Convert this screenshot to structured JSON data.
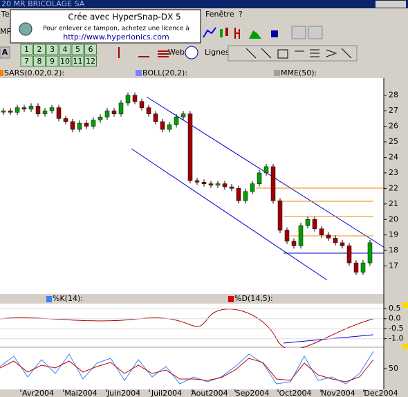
{
  "window": {
    "title": "20  MR BRICOLAGE SA"
  },
  "menu": [
    "Te",
    "Fenêtre",
    "?"
  ],
  "watermark": {
    "line1": "Crée avec HyperSnap-DX 5",
    "line2": "Pour enlever ce tampon, achetez une licence à",
    "url": "http://www.hyperionics.com"
  },
  "toolbar": {
    "font": "A",
    "row1": [
      "1",
      "2",
      "3",
      "4",
      "5",
      "6"
    ],
    "row2": [
      "7",
      "8",
      "9",
      "10",
      "11",
      "12"
    ],
    "web": "Web",
    "lines": "Lignes",
    "left": "MR"
  },
  "indicators": [
    "SARS(0.02,0.2):",
    "BOLL(20,2):",
    "MME(50):"
  ],
  "oscillators": [
    "%K(14):",
    "%D(14,5):"
  ],
  "months": [
    "Avr2004",
    "Mai2004",
    "Juin2004",
    "Juil2004",
    "Aout2004",
    "Sep2004",
    "Oct2004",
    "Nov2004",
    "Dec2004"
  ],
  "chart_data": [
    {
      "type": "candlestick",
      "values": [
        27.0,
        26.9,
        27.2,
        27.1,
        27.3,
        26.8,
        27.0,
        27.2,
        26.5,
        26.3,
        25.8,
        26.2,
        26.0,
        26.4,
        26.6,
        27.0,
        26.8,
        27.5,
        28.0,
        27.6,
        27.2,
        26.8,
        26.3,
        25.8,
        26.1,
        26.6,
        26.8,
        22.5,
        22.4,
        22.3,
        22.2,
        22.3,
        22.1,
        22.0,
        21.2,
        21.8,
        22.3,
        23.0,
        23.4,
        21.2,
        19.3,
        18.6,
        18.3,
        19.6,
        20.0,
        19.4,
        19.0,
        18.8,
        18.5,
        18.3,
        17.2,
        16.6,
        17.2,
        18.5
      ],
      "ylim": [
        15.2,
        29.1
      ],
      "yticks": [
        17,
        18,
        19,
        20,
        21,
        22,
        23,
        24,
        25,
        26,
        27,
        28
      ],
      "up_color": "#00a000",
      "down_color": "#a00000"
    },
    {
      "type": "oscillator",
      "ylim": [
        -1.39,
        0.75
      ],
      "yticks": [
        0.5,
        {
          "value": 0,
          "label": "0.0"
        },
        -0.5,
        {
          "value": -1,
          "label": "-1.0"
        }
      ]
    },
    {
      "type": "oscillator",
      "ylim": [
        0,
        100
      ],
      "yticks": [
        50
      ]
    }
  ]
}
